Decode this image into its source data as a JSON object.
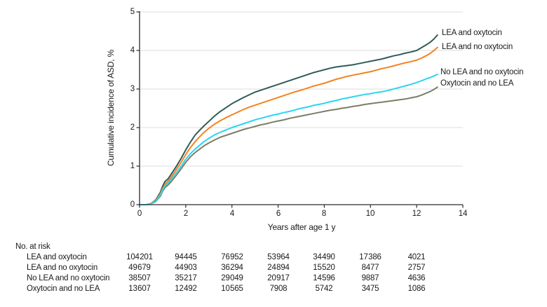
{
  "chart_data": {
    "type": "line",
    "title": "",
    "xlabel": "Years after age 1 y",
    "ylabel": "Cumulative incidence of ASD, %",
    "xlim": [
      0,
      14
    ],
    "ylim": [
      0,
      5
    ],
    "xticks": [
      "0",
      "2",
      "4",
      "6",
      "8",
      "10",
      "12",
      "14"
    ],
    "yticks": [
      "0",
      "1",
      "2",
      "3",
      "4",
      "5"
    ],
    "grid": "horizontal-light",
    "legend_position": "end-of-line-labels",
    "colors": {
      "gridline": "#DCDCDC",
      "axis": "#2B2B2B",
      "text": "#1A1A1A"
    },
    "series": [
      {
        "name": "LEA and oxytocin",
        "color": "#2F5B58",
        "points": [
          [
            0,
            0
          ],
          [
            0.3,
            0
          ],
          [
            0.5,
            0.03
          ],
          [
            0.7,
            0.12
          ],
          [
            0.9,
            0.32
          ],
          [
            1.0,
            0.48
          ],
          [
            1.1,
            0.6
          ],
          [
            1.25,
            0.68
          ],
          [
            1.4,
            0.82
          ],
          [
            1.6,
            1.0
          ],
          [
            1.8,
            1.2
          ],
          [
            2.0,
            1.42
          ],
          [
            2.2,
            1.62
          ],
          [
            2.4,
            1.8
          ],
          [
            2.6,
            1.93
          ],
          [
            2.8,
            2.05
          ],
          [
            3.0,
            2.16
          ],
          [
            3.25,
            2.3
          ],
          [
            3.5,
            2.42
          ],
          [
            3.75,
            2.52
          ],
          [
            4.0,
            2.62
          ],
          [
            4.25,
            2.7
          ],
          [
            4.5,
            2.78
          ],
          [
            4.75,
            2.85
          ],
          [
            5.0,
            2.92
          ],
          [
            5.25,
            2.97
          ],
          [
            5.5,
            3.02
          ],
          [
            5.75,
            3.07
          ],
          [
            6.0,
            3.12
          ],
          [
            6.25,
            3.17
          ],
          [
            6.5,
            3.22
          ],
          [
            6.75,
            3.27
          ],
          [
            7.0,
            3.32
          ],
          [
            7.25,
            3.37
          ],
          [
            7.5,
            3.42
          ],
          [
            7.75,
            3.46
          ],
          [
            8.0,
            3.5
          ],
          [
            8.25,
            3.54
          ],
          [
            8.5,
            3.57
          ],
          [
            8.75,
            3.59
          ],
          [
            9.0,
            3.61
          ],
          [
            9.25,
            3.63
          ],
          [
            9.5,
            3.66
          ],
          [
            9.75,
            3.69
          ],
          [
            10.0,
            3.72
          ],
          [
            10.25,
            3.75
          ],
          [
            10.5,
            3.78
          ],
          [
            10.75,
            3.82
          ],
          [
            11.0,
            3.86
          ],
          [
            11.25,
            3.89
          ],
          [
            11.5,
            3.93
          ],
          [
            11.75,
            3.96
          ],
          [
            12.0,
            4.0
          ],
          [
            12.2,
            4.07
          ],
          [
            12.4,
            4.14
          ],
          [
            12.6,
            4.22
          ],
          [
            12.75,
            4.3
          ],
          [
            12.9,
            4.4
          ]
        ]
      },
      {
        "name": "LEA and no oxytocin",
        "color": "#F5821F",
        "points": [
          [
            0,
            0
          ],
          [
            0.3,
            0
          ],
          [
            0.5,
            0.03
          ],
          [
            0.7,
            0.1
          ],
          [
            0.9,
            0.28
          ],
          [
            1.0,
            0.42
          ],
          [
            1.1,
            0.53
          ],
          [
            1.25,
            0.62
          ],
          [
            1.4,
            0.74
          ],
          [
            1.6,
            0.92
          ],
          [
            1.8,
            1.1
          ],
          [
            2.0,
            1.3
          ],
          [
            2.2,
            1.48
          ],
          [
            2.4,
            1.63
          ],
          [
            2.6,
            1.76
          ],
          [
            2.8,
            1.88
          ],
          [
            3.0,
            1.98
          ],
          [
            3.25,
            2.09
          ],
          [
            3.5,
            2.18
          ],
          [
            3.75,
            2.26
          ],
          [
            4.0,
            2.33
          ],
          [
            4.25,
            2.4
          ],
          [
            4.5,
            2.47
          ],
          [
            4.75,
            2.53
          ],
          [
            5.0,
            2.58
          ],
          [
            5.25,
            2.63
          ],
          [
            5.5,
            2.68
          ],
          [
            5.75,
            2.73
          ],
          [
            6.0,
            2.78
          ],
          [
            6.25,
            2.83
          ],
          [
            6.5,
            2.88
          ],
          [
            6.75,
            2.93
          ],
          [
            7.0,
            2.97
          ],
          [
            7.25,
            3.02
          ],
          [
            7.5,
            3.07
          ],
          [
            7.75,
            3.11
          ],
          [
            8.0,
            3.15
          ],
          [
            8.25,
            3.2
          ],
          [
            8.5,
            3.25
          ],
          [
            8.75,
            3.29
          ],
          [
            9.0,
            3.33
          ],
          [
            9.25,
            3.36
          ],
          [
            9.5,
            3.39
          ],
          [
            9.75,
            3.42
          ],
          [
            10.0,
            3.45
          ],
          [
            10.25,
            3.49
          ],
          [
            10.5,
            3.53
          ],
          [
            10.75,
            3.56
          ],
          [
            11.0,
            3.6
          ],
          [
            11.25,
            3.64
          ],
          [
            11.5,
            3.68
          ],
          [
            11.75,
            3.71
          ],
          [
            12.0,
            3.75
          ],
          [
            12.2,
            3.8
          ],
          [
            12.4,
            3.86
          ],
          [
            12.6,
            3.93
          ],
          [
            12.75,
            4.0
          ],
          [
            12.9,
            4.08
          ]
        ]
      },
      {
        "name": "No LEA and no oxytocin",
        "color": "#2BD6F0",
        "points": [
          [
            0,
            0
          ],
          [
            0.3,
            0
          ],
          [
            0.5,
            0.02
          ],
          [
            0.7,
            0.09
          ],
          [
            0.9,
            0.25
          ],
          [
            1.0,
            0.38
          ],
          [
            1.1,
            0.48
          ],
          [
            1.25,
            0.57
          ],
          [
            1.4,
            0.68
          ],
          [
            1.6,
            0.84
          ],
          [
            1.8,
            1.0
          ],
          [
            2.0,
            1.18
          ],
          [
            2.2,
            1.32
          ],
          [
            2.4,
            1.44
          ],
          [
            2.6,
            1.54
          ],
          [
            2.8,
            1.64
          ],
          [
            3.0,
            1.72
          ],
          [
            3.25,
            1.81
          ],
          [
            3.5,
            1.88
          ],
          [
            3.75,
            1.94
          ],
          [
            4.0,
            2.0
          ],
          [
            4.25,
            2.05
          ],
          [
            4.5,
            2.1
          ],
          [
            4.75,
            2.15
          ],
          [
            5.0,
            2.2
          ],
          [
            5.25,
            2.24
          ],
          [
            5.5,
            2.28
          ],
          [
            5.75,
            2.32
          ],
          [
            6.0,
            2.35
          ],
          [
            6.25,
            2.39
          ],
          [
            6.5,
            2.42
          ],
          [
            6.75,
            2.46
          ],
          [
            7.0,
            2.5
          ],
          [
            7.25,
            2.53
          ],
          [
            7.5,
            2.57
          ],
          [
            7.75,
            2.6
          ],
          [
            8.0,
            2.63
          ],
          [
            8.25,
            2.67
          ],
          [
            8.5,
            2.7
          ],
          [
            8.75,
            2.74
          ],
          [
            9.0,
            2.77
          ],
          [
            9.25,
            2.8
          ],
          [
            9.5,
            2.83
          ],
          [
            9.75,
            2.86
          ],
          [
            10.0,
            2.88
          ],
          [
            10.25,
            2.91
          ],
          [
            10.5,
            2.93
          ],
          [
            10.75,
            2.96
          ],
          [
            11.0,
            3.0
          ],
          [
            11.25,
            3.04
          ],
          [
            11.5,
            3.08
          ],
          [
            11.75,
            3.12
          ],
          [
            12.0,
            3.17
          ],
          [
            12.2,
            3.21
          ],
          [
            12.4,
            3.26
          ],
          [
            12.6,
            3.3
          ],
          [
            12.75,
            3.34
          ],
          [
            12.9,
            3.38
          ]
        ]
      },
      {
        "name": "Oxytocin and no LEA",
        "color": "#7C7D67",
        "points": [
          [
            0,
            0
          ],
          [
            0.3,
            0
          ],
          [
            0.5,
            0.02
          ],
          [
            0.7,
            0.08
          ],
          [
            0.9,
            0.22
          ],
          [
            1.0,
            0.35
          ],
          [
            1.1,
            0.44
          ],
          [
            1.25,
            0.52
          ],
          [
            1.4,
            0.62
          ],
          [
            1.6,
            0.77
          ],
          [
            1.8,
            0.93
          ],
          [
            2.0,
            1.1
          ],
          [
            2.2,
            1.24
          ],
          [
            2.4,
            1.35
          ],
          [
            2.6,
            1.44
          ],
          [
            2.8,
            1.53
          ],
          [
            3.0,
            1.6
          ],
          [
            3.25,
            1.68
          ],
          [
            3.5,
            1.75
          ],
          [
            3.75,
            1.8
          ],
          [
            4.0,
            1.85
          ],
          [
            4.25,
            1.9
          ],
          [
            4.5,
            1.95
          ],
          [
            4.75,
            1.99
          ],
          [
            5.0,
            2.03
          ],
          [
            5.25,
            2.07
          ],
          [
            5.5,
            2.1
          ],
          [
            5.75,
            2.14
          ],
          [
            6.0,
            2.17
          ],
          [
            6.25,
            2.2
          ],
          [
            6.5,
            2.24
          ],
          [
            6.75,
            2.27
          ],
          [
            7.0,
            2.3
          ],
          [
            7.25,
            2.33
          ],
          [
            7.5,
            2.36
          ],
          [
            7.75,
            2.39
          ],
          [
            8.0,
            2.42
          ],
          [
            8.25,
            2.45
          ],
          [
            8.5,
            2.47
          ],
          [
            8.75,
            2.5
          ],
          [
            9.0,
            2.52
          ],
          [
            9.25,
            2.55
          ],
          [
            9.5,
            2.57
          ],
          [
            9.75,
            2.6
          ],
          [
            10.0,
            2.62
          ],
          [
            10.25,
            2.64
          ],
          [
            10.5,
            2.66
          ],
          [
            10.75,
            2.68
          ],
          [
            11.0,
            2.7
          ],
          [
            11.25,
            2.72
          ],
          [
            11.5,
            2.74
          ],
          [
            11.75,
            2.77
          ],
          [
            12.0,
            2.8
          ],
          [
            12.2,
            2.84
          ],
          [
            12.4,
            2.89
          ],
          [
            12.6,
            2.94
          ],
          [
            12.75,
            2.99
          ],
          [
            12.9,
            3.05
          ]
        ]
      }
    ]
  },
  "risk_table": {
    "header": "No. at risk",
    "time_columns": [
      0,
      2,
      4,
      6,
      8,
      10,
      12
    ],
    "rows": [
      {
        "label": "LEA and oxytocin",
        "values": [
          "104 201",
          "94 445",
          "76 952",
          "53 964",
          "34 490",
          "17 386",
          "4021"
        ]
      },
      {
        "label": "LEA and no oxytocin",
        "values": [
          "49 679",
          "44 903",
          "36 294",
          "24 894",
          "15 520",
          "8477",
          "2757"
        ]
      },
      {
        "label": "No LEA and no oxytocin",
        "values": [
          "38 507",
          "35 217",
          "29 049",
          "20 917",
          "14 596",
          "9887",
          "4636"
        ]
      },
      {
        "label": "Oxytocin and no LEA",
        "values": [
          "13 607",
          "12 492",
          "10 565",
          "7908",
          "5742",
          "3475",
          "1086"
        ]
      }
    ]
  }
}
